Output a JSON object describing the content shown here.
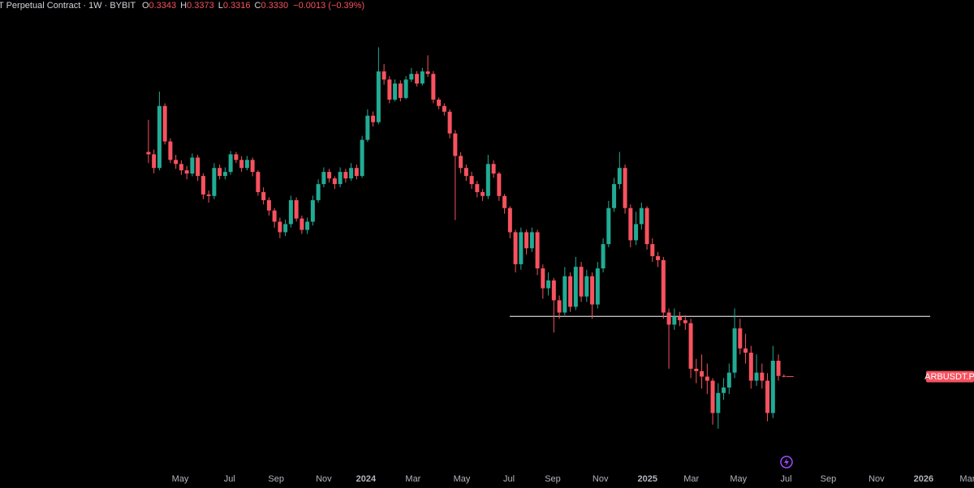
{
  "chart_data": {
    "type": "candlestick",
    "title": "T Perpetual Contract · 1W · BYBIT",
    "ohlc_legend": [
      {
        "label": "O",
        "value": "0.3343"
      },
      {
        "label": "H",
        "value": "0.3373"
      },
      {
        "label": "L",
        "value": "0.3316"
      },
      {
        "label": "C",
        "value": "0.3330"
      }
    ],
    "change": "−0.0013 (−0.39%)",
    "price_label": "ARBUSDT.P",
    "up_color": "#22ab94",
    "down_color": "#f7525f",
    "log_scale": true,
    "ylim": [
      0.2,
      3.0
    ],
    "xlim": [
      -27.1,
      150.7
    ],
    "xticks": [
      {
        "value": 5.8,
        "label": "May"
      },
      {
        "value": 14.8,
        "label": "Jul"
      },
      {
        "value": 23.3,
        "label": "Sep"
      },
      {
        "value": 32.0,
        "label": "Nov"
      },
      {
        "value": 39.7,
        "label": "2024"
      },
      {
        "value": 48.3,
        "label": "Mar"
      },
      {
        "value": 57.2,
        "label": "May"
      },
      {
        "value": 65.8,
        "label": "Jul"
      },
      {
        "value": 73.8,
        "label": "Sep"
      },
      {
        "value": 82.5,
        "label": "Nov"
      },
      {
        "value": 91.1,
        "label": "2025"
      },
      {
        "value": 99.1,
        "label": "Mar"
      },
      {
        "value": 107.7,
        "label": "May"
      },
      {
        "value": 116.4,
        "label": "Jul"
      },
      {
        "value": 124.1,
        "label": "Sep"
      },
      {
        "value": 132.9,
        "label": "Nov"
      },
      {
        "value": 141.5,
        "label": "2026"
      },
      {
        "value": 149.5,
        "label": "Mar"
      }
    ],
    "hline": {
      "value": 0.477,
      "color": "#ffffff"
    },
    "categories": [
      null,
      null,
      null,
      null,
      null,
      null,
      null,
      null,
      null,
      null,
      null,
      null,
      null,
      null,
      null,
      null,
      null,
      null,
      null,
      null,
      null,
      null,
      null,
      null,
      null,
      null,
      null,
      null,
      null,
      null,
      null,
      null,
      null,
      null,
      null,
      null,
      null,
      null,
      null,
      null,
      null,
      null,
      null,
      null,
      null,
      null,
      null,
      null,
      null,
      null,
      null,
      null,
      null,
      null,
      null,
      null,
      null,
      null,
      null,
      null,
      null,
      null,
      null,
      null,
      null,
      null,
      null,
      null,
      null,
      null,
      null,
      null,
      null,
      null,
      null,
      null,
      null,
      null,
      null,
      null,
      null,
      null,
      null,
      null,
      null,
      null,
      null,
      null,
      null,
      null,
      null,
      null,
      null,
      null,
      null,
      null,
      null,
      null,
      null,
      null,
      null,
      null,
      null,
      null,
      null,
      null,
      null,
      null,
      null,
      null,
      null,
      null,
      null,
      null,
      null,
      null,
      null
    ],
    "open": [
      1.272,
      1.254,
      1.156,
      1.673,
      1.354,
      1.213,
      1.184,
      1.14,
      1.118,
      1.23,
      1.102,
      0.987,
      0.978,
      1.156,
      1.102,
      1.129,
      1.254,
      1.213,
      1.156,
      1.213,
      1.129,
      1.001,
      0.954,
      0.897,
      0.839,
      0.788,
      0.827,
      0.954,
      0.855,
      0.799,
      0.839,
      0.954,
      1.05,
      1.129,
      1.086,
      1.05,
      1.129,
      1.086,
      1.156,
      1.102,
      1.367,
      1.579,
      1.519,
      2.056,
      1.959,
      1.738,
      1.913,
      1.755,
      1.959,
      2.026,
      1.913,
      2.056,
      2.026,
      1.738,
      1.673,
      1.617,
      1.42,
      1.242,
      1.156,
      1.102,
      1.05,
      1.001,
      0.978,
      1.184,
      1.118,
      0.978,
      0.91,
      0.788,
      0.651,
      0.788,
      0.716,
      0.788,
      0.635,
      0.564,
      0.591,
      0.525,
      0.488,
      0.606,
      0.505,
      0.641,
      0.537,
      0.606,
      0.512,
      0.635,
      0.734,
      0.91,
      1.05,
      1.156,
      0.91,
      0.751,
      0.827,
      0.91,
      0.734,
      0.683,
      0.667,
      0.488,
      0.454,
      0.477,
      0.466,
      0.458,
      0.349,
      0.344,
      0.333,
      0.325,
      0.268,
      0.302,
      0.312,
      0.341,
      0.444,
      0.394,
      0.384,
      0.325,
      0.341,
      0.325,
      0.268,
      0.366,
      0.3343
    ],
    "high": [
      1.541,
      1.29,
      1.823,
      1.7,
      1.38,
      1.25,
      1.21,
      1.17,
      1.26,
      1.25,
      1.12,
      1.01,
      1.19,
      1.18,
      1.16,
      1.28,
      1.272,
      1.24,
      1.242,
      1.23,
      1.14,
      1.03,
      0.97,
      0.91,
      0.86,
      0.85,
      0.98,
      0.97,
      0.87,
      0.86,
      0.98,
      1.08,
      1.16,
      1.15,
      1.1,
      1.16,
      1.15,
      1.19,
      1.18,
      1.4,
      1.64,
      1.62,
      2.374,
      2.15,
      2.0,
      1.96,
      1.95,
      2.0,
      2.1,
      2.06,
      2.1,
      2.263,
      2.06,
      1.76,
      1.7,
      1.64,
      1.45,
      1.27,
      1.18,
      1.13,
      1.07,
      1.02,
      1.25,
      1.21,
      1.13,
      0.99,
      0.92,
      0.8,
      0.81,
      0.8,
      0.81,
      0.8,
      0.65,
      0.62,
      0.6,
      0.54,
      0.64,
      0.62,
      0.68,
      0.66,
      0.63,
      0.62,
      0.66,
      0.76,
      0.95,
      1.09,
      1.272,
      1.18,
      0.93,
      0.89,
      0.94,
      0.92,
      0.76,
      0.7,
      0.68,
      0.5,
      0.5,
      0.49,
      0.48,
      0.47,
      0.37,
      0.38,
      0.36,
      0.33,
      0.32,
      0.33,
      0.36,
      0.5,
      0.47,
      0.43,
      0.4,
      0.38,
      0.36,
      0.34,
      0.4,
      0.38,
      0.3373
    ],
    "low": [
      1.19,
      1.12,
      1.14,
      1.33,
      1.19,
      1.15,
      1.11,
      1.08,
      1.1,
      1.07,
      0.96,
      0.94,
      0.96,
      1.08,
      1.08,
      1.11,
      1.19,
      1.13,
      1.14,
      1.1,
      0.98,
      0.93,
      0.87,
      0.81,
      0.76,
      0.77,
      0.81,
      0.84,
      0.78,
      0.78,
      0.82,
      0.94,
      1.03,
      1.06,
      1.02,
      1.03,
      1.06,
      1.07,
      1.08,
      1.09,
      1.35,
      1.48,
      1.5,
      1.9,
      1.7,
      1.72,
      1.72,
      1.74,
      1.93,
      1.88,
      1.89,
      1.99,
      1.7,
      1.64,
      1.58,
      1.38,
      0.847,
      1.12,
      1.07,
      1.02,
      0.97,
      0.95,
      0.96,
      1.09,
      0.95,
      0.88,
      0.76,
      0.62,
      0.63,
      0.69,
      0.7,
      0.61,
      0.53,
      0.54,
      0.433,
      0.47,
      0.48,
      0.49,
      0.495,
      0.52,
      0.52,
      0.47,
      0.5,
      0.62,
      0.72,
      0.89,
      1.02,
      0.88,
      0.72,
      0.73,
      0.8,
      0.71,
      0.66,
      0.64,
      0.47,
      0.349,
      0.44,
      0.45,
      0.44,
      0.33,
      0.32,
      0.31,
      0.3,
      0.25,
      0.244,
      0.29,
      0.3,
      0.33,
      0.38,
      0.36,
      0.31,
      0.315,
      0.31,
      0.255,
      0.26,
      0.325,
      0.3316
    ],
    "close": [
      1.254,
      1.156,
      1.673,
      1.354,
      1.213,
      1.184,
      1.14,
      1.118,
      1.23,
      1.102,
      0.987,
      0.978,
      1.156,
      1.102,
      1.129,
      1.254,
      1.213,
      1.156,
      1.213,
      1.129,
      1.001,
      0.954,
      0.897,
      0.839,
      0.788,
      0.827,
      0.954,
      0.855,
      0.799,
      0.839,
      0.954,
      1.05,
      1.129,
      1.086,
      1.05,
      1.129,
      1.086,
      1.156,
      1.102,
      1.367,
      1.579,
      1.519,
      2.056,
      1.959,
      1.738,
      1.913,
      1.755,
      1.959,
      2.026,
      1.913,
      2.056,
      2.026,
      1.738,
      1.673,
      1.617,
      1.42,
      1.242,
      1.156,
      1.102,
      1.05,
      1.001,
      0.978,
      1.184,
      1.118,
      0.978,
      0.91,
      0.788,
      0.651,
      0.788,
      0.716,
      0.788,
      0.635,
      0.564,
      0.591,
      0.525,
      0.488,
      0.606,
      0.505,
      0.641,
      0.537,
      0.606,
      0.512,
      0.635,
      0.734,
      0.91,
      1.05,
      1.156,
      0.91,
      0.751,
      0.827,
      0.91,
      0.734,
      0.683,
      0.667,
      0.488,
      0.454,
      0.477,
      0.466,
      0.458,
      0.349,
      0.344,
      0.333,
      0.325,
      0.268,
      0.302,
      0.312,
      0.341,
      0.444,
      0.394,
      0.384,
      0.325,
      0.341,
      0.325,
      0.268,
      0.366,
      0.3343,
      0.333
    ]
  }
}
